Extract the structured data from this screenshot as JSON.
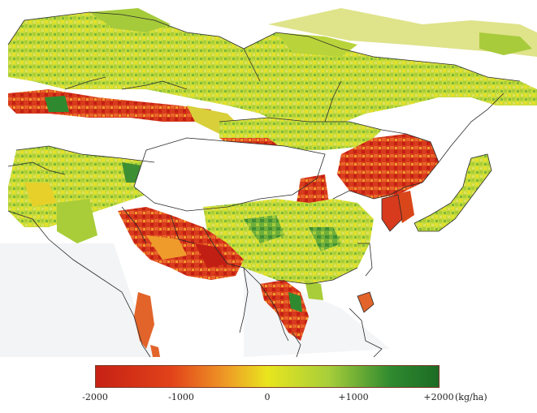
{
  "legend": {
    "min_label": "-2000",
    "neg_label": "-1000",
    "zero_label": "0",
    "pos_label": "+1000",
    "max_label": "+2000",
    "unit": "(kg/ha)",
    "colors": {
      "strong_loss": "#c62114",
      "loss": "#e2421a",
      "moderate_loss": "#ee9a26",
      "neutral": "#e9e51e",
      "gain": "#a7ce3a",
      "strong_gain": "#2f8a2f",
      "max_gain": "#1d6b25"
    }
  },
  "map": {
    "ocean": "#ffffff",
    "coastline": "#2a2a2a",
    "no_data_region": "Tibetan Plateau / Xinjiang (unshaded)",
    "regions_shown": [
      "Europe",
      "Russia",
      "Central Asia",
      "Middle East",
      "South Asia",
      "China",
      "Mongolia",
      "Korea",
      "Japan",
      "Southeast Asia",
      "Philippines"
    ]
  }
}
